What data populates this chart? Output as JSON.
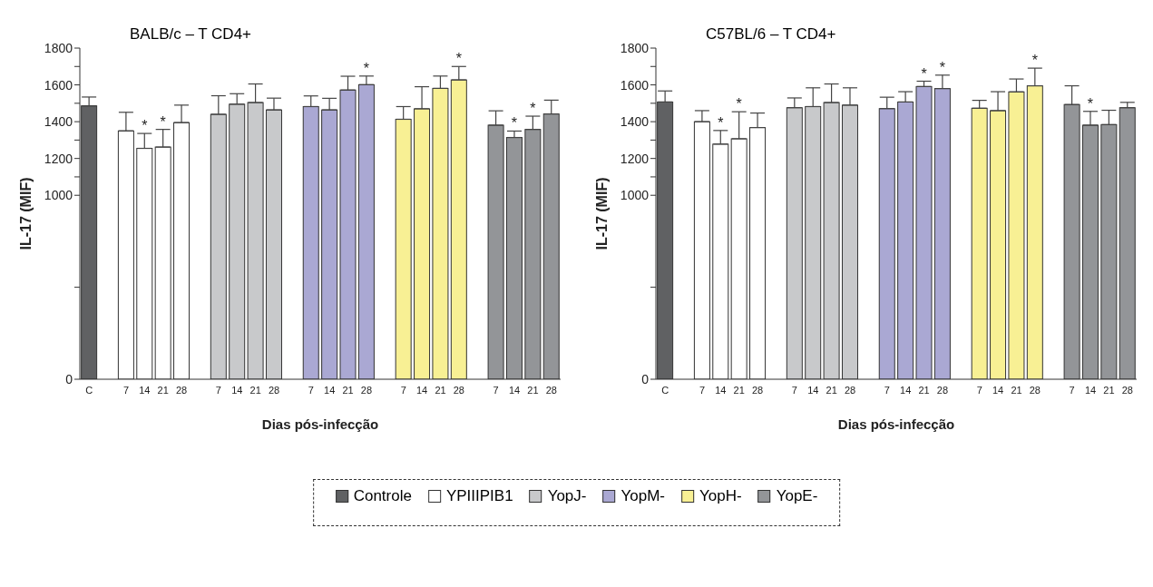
{
  "chart_data": [
    {
      "type": "bar",
      "stacked": true,
      "title": "BALB/c – T CD4+",
      "xlabel": "Dias pós-infecção",
      "ylabel": "IL-17 (MIF)",
      "legend": "bottom",
      "categories": [
        "C",
        null,
        "7",
        "14",
        "21",
        "28",
        null,
        "7",
        "14",
        "21",
        "28",
        null,
        "7",
        "14",
        "21",
        "28",
        null,
        "7",
        "14",
        "21",
        "28",
        null,
        "7",
        "14",
        "21",
        "28"
      ],
      "ylim": [
        0,
        1800
      ],
      "yticks": [
        0,
        {
          "value": 500,
          "label": null
        },
        1000,
        {
          "value": 1100,
          "label": null
        },
        1200,
        {
          "value": 1300,
          "label": null
        },
        1400,
        {
          "value": 1500,
          "label": null
        },
        1600,
        {
          "value": 1700,
          "label": null
        },
        1800
      ],
      "series": [
        {
          "name": "Controle",
          "color": "#606163",
          "values": [
            1486,
            null,
            null,
            null,
            null,
            null,
            null,
            null,
            null,
            null,
            null,
            null,
            null,
            null,
            null,
            null,
            null,
            null,
            null,
            null,
            null,
            null,
            null,
            null,
            null,
            null
          ],
          "errors": [
            48,
            null,
            null,
            null,
            null,
            null,
            null,
            null,
            null,
            null,
            null,
            null,
            null,
            null,
            null,
            null,
            null,
            null,
            null,
            null,
            null,
            null,
            null,
            null,
            null,
            null
          ]
        },
        {
          "name": "YPIIIPIB1",
          "color": "#ffffff",
          "values": [
            null,
            null,
            1350,
            1255,
            1262,
            1395,
            null,
            null,
            null,
            null,
            null,
            null,
            null,
            null,
            null,
            null,
            null,
            null,
            null,
            null,
            null,
            null,
            null,
            null,
            null,
            null
          ],
          "errors": [
            null,
            null,
            101,
            81,
            96,
            95,
            null,
            null,
            null,
            null,
            null,
            null,
            null,
            null,
            null,
            null,
            null,
            null,
            null,
            null,
            null,
            null,
            null,
            null,
            null,
            null
          ],
          "value_labels": [
            null,
            null,
            null,
            "*",
            "*",
            null,
            null,
            null,
            null,
            null,
            null,
            null,
            null,
            null,
            null,
            null,
            null,
            null,
            null,
            null,
            null,
            null,
            null,
            null,
            null,
            null
          ]
        },
        {
          "name": "YopJ-",
          "color": "#c8c9cb",
          "values": [
            null,
            null,
            null,
            null,
            null,
            null,
            null,
            1440,
            1495,
            1504,
            1464,
            null,
            null,
            null,
            null,
            null,
            null,
            null,
            null,
            null,
            null,
            null,
            null,
            null,
            null,
            null
          ],
          "errors": [
            null,
            null,
            null,
            null,
            null,
            null,
            null,
            101,
            57,
            101,
            64,
            null,
            null,
            null,
            null,
            null,
            null,
            null,
            null,
            null,
            null,
            null,
            null,
            null,
            null,
            null
          ]
        },
        {
          "name": "YopM-",
          "color": "#aaa8d3",
          "values": [
            null,
            null,
            null,
            null,
            null,
            null,
            null,
            null,
            null,
            null,
            null,
            null,
            1482,
            1464,
            1572,
            1601,
            null,
            null,
            null,
            null,
            null,
            null,
            null,
            null,
            null,
            null
          ],
          "errors": [
            null,
            null,
            null,
            null,
            null,
            null,
            null,
            null,
            null,
            null,
            null,
            null,
            58,
            63,
            75,
            47,
            null,
            null,
            null,
            null,
            null,
            null,
            null,
            null,
            null,
            null
          ],
          "value_labels": [
            null,
            null,
            null,
            null,
            null,
            null,
            null,
            null,
            null,
            null,
            null,
            null,
            null,
            null,
            null,
            "*",
            null,
            null,
            null,
            null,
            null,
            null,
            null,
            null,
            null,
            null
          ]
        },
        {
          "name": "YopH-",
          "color": "#f8f094",
          "values": [
            null,
            null,
            null,
            null,
            null,
            null,
            null,
            null,
            null,
            null,
            null,
            null,
            null,
            null,
            null,
            null,
            null,
            1413,
            1470,
            1581,
            1627,
            null,
            null,
            null,
            null,
            null
          ],
          "errors": [
            null,
            null,
            null,
            null,
            null,
            null,
            null,
            null,
            null,
            null,
            null,
            null,
            null,
            null,
            null,
            null,
            null,
            69,
            120,
            67,
            73,
            null,
            null,
            null,
            null,
            null
          ],
          "value_labels": [
            null,
            null,
            null,
            null,
            null,
            null,
            null,
            null,
            null,
            null,
            null,
            null,
            null,
            null,
            null,
            null,
            null,
            null,
            null,
            null,
            "*",
            null,
            null,
            null,
            null,
            null
          ]
        },
        {
          "name": "YopE-",
          "color": "#939598",
          "values": [
            null,
            null,
            null,
            null,
            null,
            null,
            null,
            null,
            null,
            null,
            null,
            null,
            null,
            null,
            null,
            null,
            null,
            null,
            null,
            null,
            null,
            null,
            1381,
            1314,
            1358,
            1442
          ],
          "errors": [
            null,
            null,
            null,
            null,
            null,
            null,
            null,
            null,
            null,
            null,
            null,
            null,
            null,
            null,
            null,
            null,
            null,
            null,
            null,
            null,
            null,
            null,
            78,
            35,
            72,
            75
          ],
          "value_labels": [
            null,
            null,
            null,
            null,
            null,
            null,
            null,
            null,
            null,
            null,
            null,
            null,
            null,
            null,
            null,
            null,
            null,
            null,
            null,
            null,
            null,
            null,
            null,
            "*",
            "*",
            null
          ]
        }
      ]
    },
    {
      "type": "bar",
      "stacked": true,
      "title": "C57BL/6 – T CD4+",
      "xlabel": "Dias pós-infecção",
      "ylabel": "IL-17 (MIF)",
      "legend": "bottom",
      "categories": [
        "C",
        null,
        "7",
        "14",
        "21",
        "28",
        null,
        "7",
        "14",
        "21",
        "28",
        null,
        "7",
        "14",
        "21",
        "28",
        null,
        "7",
        "14",
        "21",
        "28",
        null,
        "7",
        "14",
        "21",
        "28"
      ],
      "ylim": [
        0,
        1800
      ],
      "yticks": [
        0,
        {
          "value": 500,
          "label": null
        },
        1000,
        {
          "value": 1100,
          "label": null
        },
        1200,
        {
          "value": 1300,
          "label": null
        },
        1400,
        {
          "value": 1500,
          "label": null
        },
        1600,
        {
          "value": 1700,
          "label": null
        },
        1800
      ],
      "series": [
        {
          "name": "Controle",
          "color": "#606163",
          "values": [
            1507,
            null,
            null,
            null,
            null,
            null,
            null,
            null,
            null,
            null,
            null,
            null,
            null,
            null,
            null,
            null,
            null,
            null,
            null,
            null,
            null,
            null,
            null,
            null,
            null,
            null
          ],
          "errors": [
            60,
            null,
            null,
            null,
            null,
            null,
            null,
            null,
            null,
            null,
            null,
            null,
            null,
            null,
            null,
            null,
            null,
            null,
            null,
            null,
            null,
            null,
            null,
            null,
            null,
            null
          ]
        },
        {
          "name": "YPIIIPIB1",
          "color": "#ffffff",
          "values": [
            null,
            null,
            1400,
            1278,
            1307,
            1368,
            null,
            null,
            null,
            null,
            null,
            null,
            null,
            null,
            null,
            null,
            null,
            null,
            null,
            null,
            null,
            null,
            null,
            null,
            null,
            null
          ],
          "errors": [
            null,
            null,
            60,
            74,
            147,
            79,
            null,
            null,
            null,
            null,
            null,
            null,
            null,
            null,
            null,
            null,
            null,
            null,
            null,
            null,
            null,
            null,
            null,
            null,
            null,
            null
          ],
          "value_labels": [
            null,
            null,
            null,
            "*",
            "*",
            null,
            null,
            null,
            null,
            null,
            null,
            null,
            null,
            null,
            null,
            null,
            null,
            null,
            null,
            null,
            null,
            null,
            null,
            null,
            null,
            null
          ]
        },
        {
          "name": "YopJ-",
          "color": "#c8c9cb",
          "values": [
            null,
            null,
            null,
            null,
            null,
            null,
            null,
            1476,
            1482,
            1504,
            1490,
            null,
            null,
            null,
            null,
            null,
            null,
            null,
            null,
            null,
            null,
            null,
            null,
            null,
            null,
            null
          ],
          "errors": [
            null,
            null,
            null,
            null,
            null,
            null,
            null,
            53,
            102,
            101,
            94,
            null,
            null,
            null,
            null,
            null,
            null,
            null,
            null,
            null,
            null,
            null,
            null,
            null,
            null,
            null
          ]
        },
        {
          "name": "YopM-",
          "color": "#aaa8d3",
          "values": [
            null,
            null,
            null,
            null,
            null,
            null,
            null,
            null,
            null,
            null,
            null,
            null,
            1471,
            1507,
            1591,
            1580,
            null,
            null,
            null,
            null,
            null,
            null,
            null,
            null,
            null,
            null
          ],
          "errors": [
            null,
            null,
            null,
            null,
            null,
            null,
            null,
            null,
            null,
            null,
            null,
            null,
            62,
            56,
            29,
            73,
            null,
            null,
            null,
            null,
            null,
            null,
            null,
            null,
            null,
            null
          ],
          "value_labels": [
            null,
            null,
            null,
            null,
            null,
            null,
            null,
            null,
            null,
            null,
            null,
            null,
            null,
            null,
            "*",
            "*",
            null,
            null,
            null,
            null,
            null,
            null,
            null,
            null,
            null,
            null
          ]
        },
        {
          "name": "YopH-",
          "color": "#f8f094",
          "values": [
            null,
            null,
            null,
            null,
            null,
            null,
            null,
            null,
            null,
            null,
            null,
            null,
            null,
            null,
            null,
            null,
            null,
            1473,
            1460,
            1562,
            1595,
            null,
            null,
            null,
            null,
            null
          ],
          "errors": [
            null,
            null,
            null,
            null,
            null,
            null,
            null,
            null,
            null,
            null,
            null,
            null,
            null,
            null,
            null,
            null,
            null,
            43,
            103,
            70,
            96,
            null,
            null,
            null,
            null,
            null
          ],
          "value_labels": [
            null,
            null,
            null,
            null,
            null,
            null,
            null,
            null,
            null,
            null,
            null,
            null,
            null,
            null,
            null,
            null,
            null,
            null,
            null,
            null,
            "*",
            null,
            null,
            null,
            null,
            null
          ]
        },
        {
          "name": "YopE-",
          "color": "#939598",
          "values": [
            null,
            null,
            null,
            null,
            null,
            null,
            null,
            null,
            null,
            null,
            null,
            null,
            null,
            null,
            null,
            null,
            null,
            null,
            null,
            null,
            null,
            null,
            1493,
            1381,
            1384,
            1476
          ],
          "errors": [
            null,
            null,
            null,
            null,
            null,
            null,
            null,
            null,
            null,
            null,
            null,
            null,
            null,
            null,
            null,
            null,
            null,
            null,
            null,
            null,
            null,
            null,
            102,
            75,
            78,
            29
          ],
          "value_labels": [
            null,
            null,
            null,
            null,
            null,
            null,
            null,
            null,
            null,
            null,
            null,
            null,
            null,
            null,
            null,
            null,
            null,
            null,
            null,
            null,
            null,
            null,
            null,
            "*",
            null,
            null
          ]
        }
      ]
    }
  ]
}
